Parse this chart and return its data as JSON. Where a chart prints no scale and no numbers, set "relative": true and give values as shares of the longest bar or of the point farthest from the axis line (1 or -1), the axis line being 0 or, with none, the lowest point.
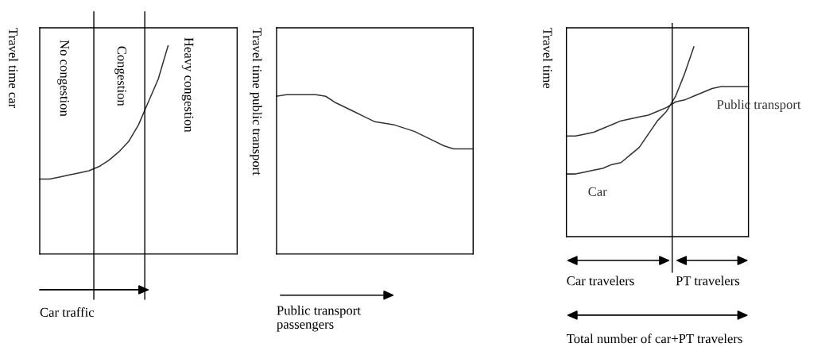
{
  "chart_data": [
    {
      "type": "line",
      "relative": true,
      "ylabel": "Travel time car",
      "xlabel": "Car traffic",
      "legend": false,
      "tick_labels": false,
      "marker": "none",
      "line_style": "solid",
      "categories": [
        null,
        null,
        null,
        null,
        null,
        null,
        null,
        null,
        null,
        null,
        null,
        null,
        null,
        null,
        null,
        null,
        null,
        null,
        null,
        null,
        null
      ],
      "series": [
        {
          "color": "#333333",
          "values": [
            0.36,
            0.36,
            0.37,
            0.38,
            0.39,
            0.4,
            0.42,
            0.45,
            0.49,
            0.54,
            0.62,
            0.73,
            0.84,
            1,
            null,
            null,
            null,
            null,
            null,
            null,
            null
          ]
        }
      ],
      "annotations": [
        "No congestion",
        "Congestion",
        "Heavy congestion"
      ]
    },
    {
      "type": "line",
      "relative": true,
      "ylabel": "Travel time public transport",
      "xlabel": "Public transport\npassengers",
      "legend": false,
      "tick_labels": false,
      "marker": "none",
      "line_style": "solid",
      "categories": [
        null,
        null,
        null,
        null,
        null,
        null,
        null,
        null,
        null,
        null,
        null,
        null,
        null,
        null,
        null,
        null,
        null,
        null,
        null,
        null,
        null
      ],
      "series": [
        {
          "color": "#333333",
          "values": [
            0.99,
            1,
            1,
            1,
            1,
            0.99,
            0.95,
            0.92,
            0.89,
            0.86,
            0.83,
            0.82,
            0.81,
            0.79,
            0.77,
            0.74,
            0.71,
            0.68,
            0.66,
            0.66,
            0.66
          ]
        }
      ]
    },
    {
      "type": "line",
      "relative": true,
      "ylabel": "Travel time",
      "legend": false,
      "tick_labels": false,
      "marker": "none",
      "line_style": "solid",
      "categories": [
        null,
        null,
        null,
        null,
        null,
        null,
        null,
        null,
        null,
        null,
        null,
        null,
        null,
        null,
        null,
        null,
        null,
        null,
        null,
        null,
        null
      ],
      "series": [
        {
          "name": "Car",
          "color": "#333333",
          "values": [
            0.33,
            0.33,
            0.34,
            0.35,
            0.36,
            0.38,
            0.39,
            0.43,
            0.47,
            0.54,
            0.61,
            0.66,
            0.74,
            0.86,
            1,
            null,
            null,
            null,
            null,
            null,
            null
          ]
        },
        {
          "name": "Public transport",
          "color": "#333333",
          "values": [
            0.53,
            0.53,
            0.54,
            0.55,
            0.57,
            0.59,
            0.61,
            0.62,
            0.63,
            0.64,
            0.66,
            0.68,
            0.71,
            0.72,
            0.74,
            0.76,
            0.78,
            0.79,
            0.79,
            0.79,
            0.79
          ]
        }
      ],
      "annotations": [
        "Car travelers",
        "PT travelers",
        "Total number of car+PT travelers"
      ]
    }
  ]
}
